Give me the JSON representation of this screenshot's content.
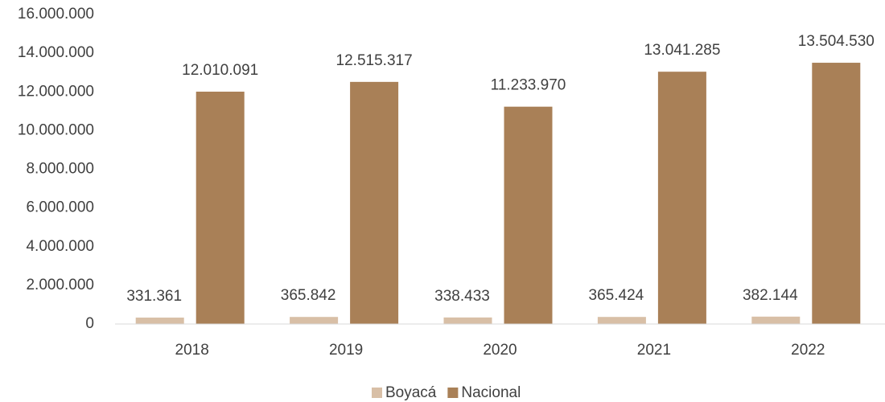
{
  "chart_data": {
    "type": "bar",
    "categories": [
      "2018",
      "2019",
      "2020",
      "2021",
      "2022"
    ],
    "series": [
      {
        "name": "Boyacá",
        "color": "#d8bfa6",
        "values": [
          331361,
          365842,
          338433,
          365424,
          382144
        ],
        "value_labels": [
          "331.361",
          "365.842",
          "338.433",
          "365.424",
          "382.144"
        ]
      },
      {
        "name": "Nacional",
        "color": "#a98057",
        "values": [
          12010091,
          12515317,
          11233970,
          13041285,
          13504530
        ],
        "value_labels": [
          "12.010.091",
          "12.515.317",
          "11.233.970",
          "13.041.285",
          "13.504.530"
        ]
      }
    ],
    "ylim": [
      0,
      16000000
    ],
    "yticks": [
      {
        "value": 0,
        "label": "0"
      },
      {
        "value": 2000000,
        "label": "2.000.000"
      },
      {
        "value": 4000000,
        "label": "4.000.000"
      },
      {
        "value": 6000000,
        "label": "6.000.000"
      },
      {
        "value": 8000000,
        "label": "8.000.000"
      },
      {
        "value": 10000000,
        "label": "10.000.000"
      },
      {
        "value": 12000000,
        "label": "12.000.000"
      },
      {
        "value": 14000000,
        "label": "14.000.000"
      },
      {
        "value": 16000000,
        "label": "16.000.000"
      }
    ],
    "grid": false,
    "legend": "bottom"
  }
}
